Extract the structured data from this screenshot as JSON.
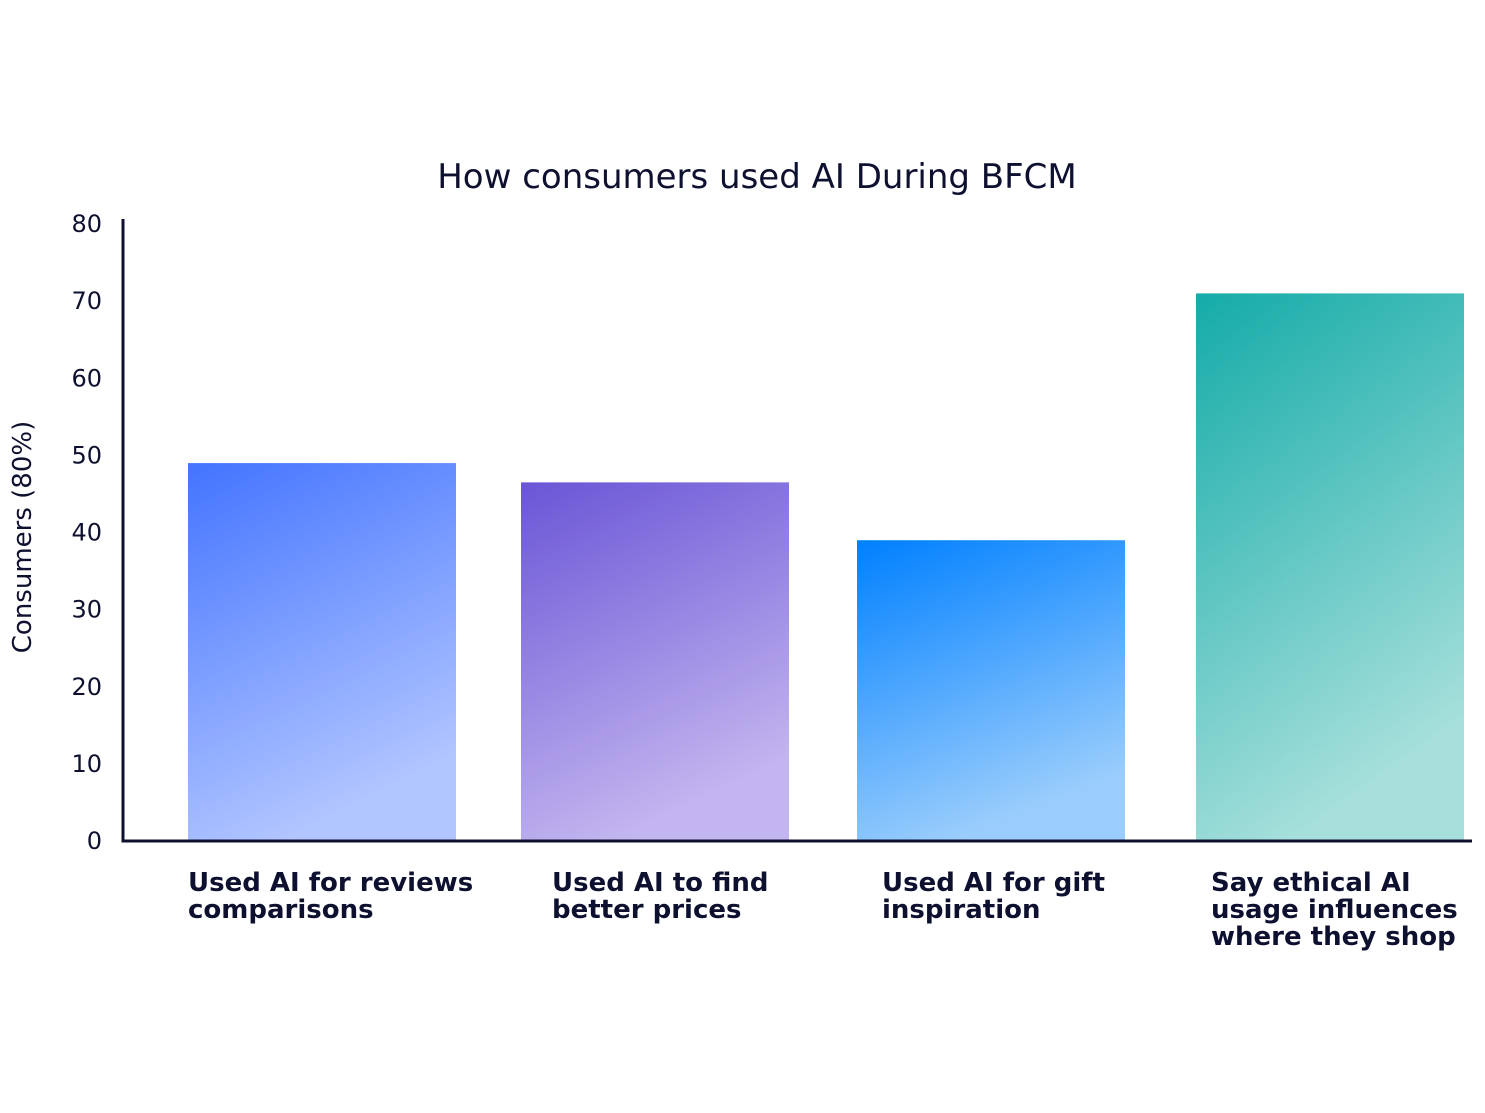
{
  "chart_data": {
    "type": "bar",
    "title": "How consumers used AI During BFCM",
    "xlabel": "",
    "ylabel": "Consumers (80%)",
    "ylim": [
      0,
      80
    ],
    "yticks": [
      0,
      10,
      20,
      30,
      40,
      50,
      60,
      70,
      80
    ],
    "grid": false,
    "legend": "none",
    "categories": [
      [
        "Used AI for reviews",
        "comparisons"
      ],
      [
        "Used AI to find",
        "better prices"
      ],
      [
        "Used AI for gift",
        "inspiration"
      ],
      [
        "Say ethical AI",
        "usage influences",
        "where they shop"
      ]
    ],
    "values": [
      49,
      46.5,
      39,
      71
    ],
    "colors": [
      {
        "top": "#4374ff",
        "bottom": "#b1c5ff"
      },
      {
        "top": "#6a55d6",
        "bottom": "#c3b5ef"
      },
      {
        "top": "#0080ff",
        "bottom": "#9acdfc"
      },
      {
        "top": "#14aba8",
        "bottom": "#a6dfdb"
      }
    ],
    "axis_color": "#0e1030"
  }
}
